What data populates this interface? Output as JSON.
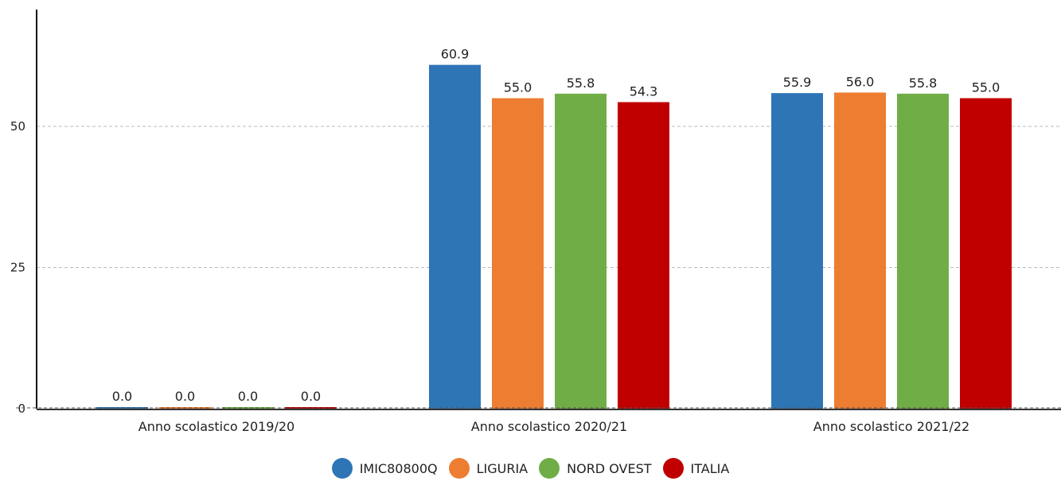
{
  "chart_data": {
    "type": "bar",
    "categories": [
      "Anno scolastico 2019/20",
      "Anno scolastico 2020/21",
      "Anno scolastico 2021/22"
    ],
    "series": [
      {
        "name": "IMIC80800Q",
        "color": "#2e75b6",
        "values": [
          0.0,
          60.9,
          55.9
        ]
      },
      {
        "name": "LIGURIA",
        "color": "#ed7d31",
        "values": [
          0.0,
          55.0,
          56.0
        ]
      },
      {
        "name": "NORD OVEST",
        "color": "#70ad47",
        "values": [
          0.0,
          55.8,
          55.8
        ]
      },
      {
        "name": "ITALIA",
        "color": "#c00000",
        "values": [
          0.0,
          54.3,
          55.0
        ]
      }
    ],
    "value_labels": [
      [
        "0.0",
        "60.9",
        "55.9"
      ],
      [
        "0.0",
        "55.0",
        "56.0"
      ],
      [
        "0.0",
        "55.8",
        "55.8"
      ],
      [
        "0.0",
        "54.3",
        "55.0"
      ]
    ],
    "yticks": [
      "0",
      "25",
      "50"
    ],
    "ylim": [
      0,
      70
    ],
    "grid": true,
    "legend_position": "bottom"
  }
}
